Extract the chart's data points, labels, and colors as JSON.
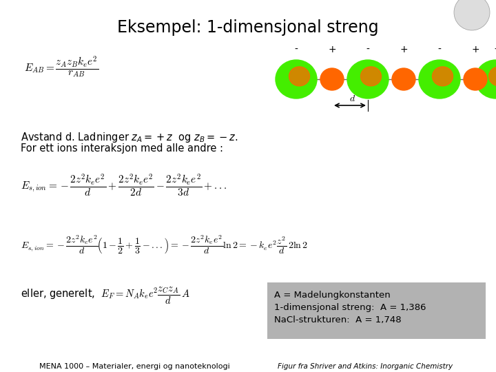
{
  "title": "Eksempel: 1-dimensjonal streng",
  "title_fontsize": 17,
  "background_color": "#ffffff",
  "text1": "Avstand d. Ladninger $z_A = +z$  og $z_B = -z$.",
  "text2": "For ett ions interaksjon med alle andre :",
  "box_text_lines": [
    "A = Madelungkonstanten",
    "1-dimensjonal streng:  A = 1,386",
    "NaCl-strukturen:  A = 1,748"
  ],
  "box_color": "#b2b2b2",
  "footer_left": "MENA 1000 – Materialer, energi og nanoteknologi",
  "footer_right": "Figur fra Shriver and Atkins: Inorganic Chemistry",
  "neg_color": "#44ee00",
  "pos_color": "#ff6600",
  "line_color": "#666666"
}
